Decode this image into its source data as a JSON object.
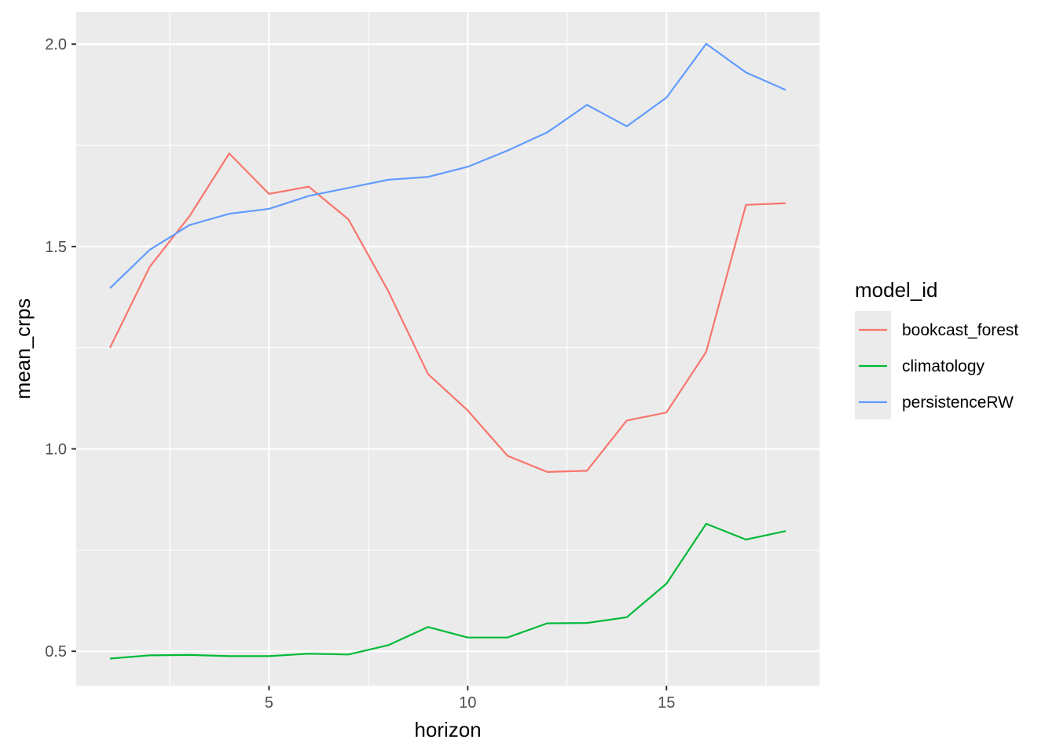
{
  "chart_data": {
    "type": "line",
    "xlabel": "horizon",
    "ylabel": "mean_crps",
    "xlim": [
      0.15,
      18.85
    ],
    "ylim": [
      0.415,
      2.08
    ],
    "x_ticks": [
      5,
      10,
      15
    ],
    "x_minor_ticks": [
      2.5,
      7.5,
      12.5,
      17.5
    ],
    "y_ticks": [
      0.5,
      1.0,
      1.5,
      2.0
    ],
    "y_tick_labels": [
      "0.5",
      "1.0",
      "1.5",
      "2.0"
    ],
    "y_minor_ticks": [
      0.75,
      1.25,
      1.75
    ],
    "grid": true,
    "legend": {
      "title": "model_id",
      "position": "right"
    },
    "x": [
      1,
      2,
      3,
      4,
      5,
      6,
      7,
      8,
      9,
      10,
      11,
      12,
      13,
      14,
      15,
      16,
      17,
      18
    ],
    "series": [
      {
        "name": "bookcast_forest",
        "color": "#F8766D",
        "values": [
          1.25,
          1.45,
          1.575,
          1.73,
          1.63,
          1.648,
          1.567,
          1.39,
          1.185,
          1.095,
          0.983,
          0.943,
          0.946,
          1.07,
          1.09,
          1.24,
          1.603,
          1.607
        ]
      },
      {
        "name": "climatology",
        "color": "#00BA38",
        "values": [
          0.482,
          0.49,
          0.491,
          0.488,
          0.488,
          0.494,
          0.492,
          0.515,
          0.56,
          0.534,
          0.534,
          0.569,
          0.57,
          0.584,
          0.667,
          0.815,
          0.776,
          0.797
        ]
      },
      {
        "name": "persistenceRW",
        "color": "#619CFF",
        "values": [
          1.397,
          1.492,
          1.553,
          1.581,
          1.593,
          1.625,
          1.645,
          1.665,
          1.672,
          1.697,
          1.737,
          1.782,
          1.85,
          1.797,
          1.868,
          2.001,
          1.93,
          1.887
        ]
      }
    ]
  }
}
